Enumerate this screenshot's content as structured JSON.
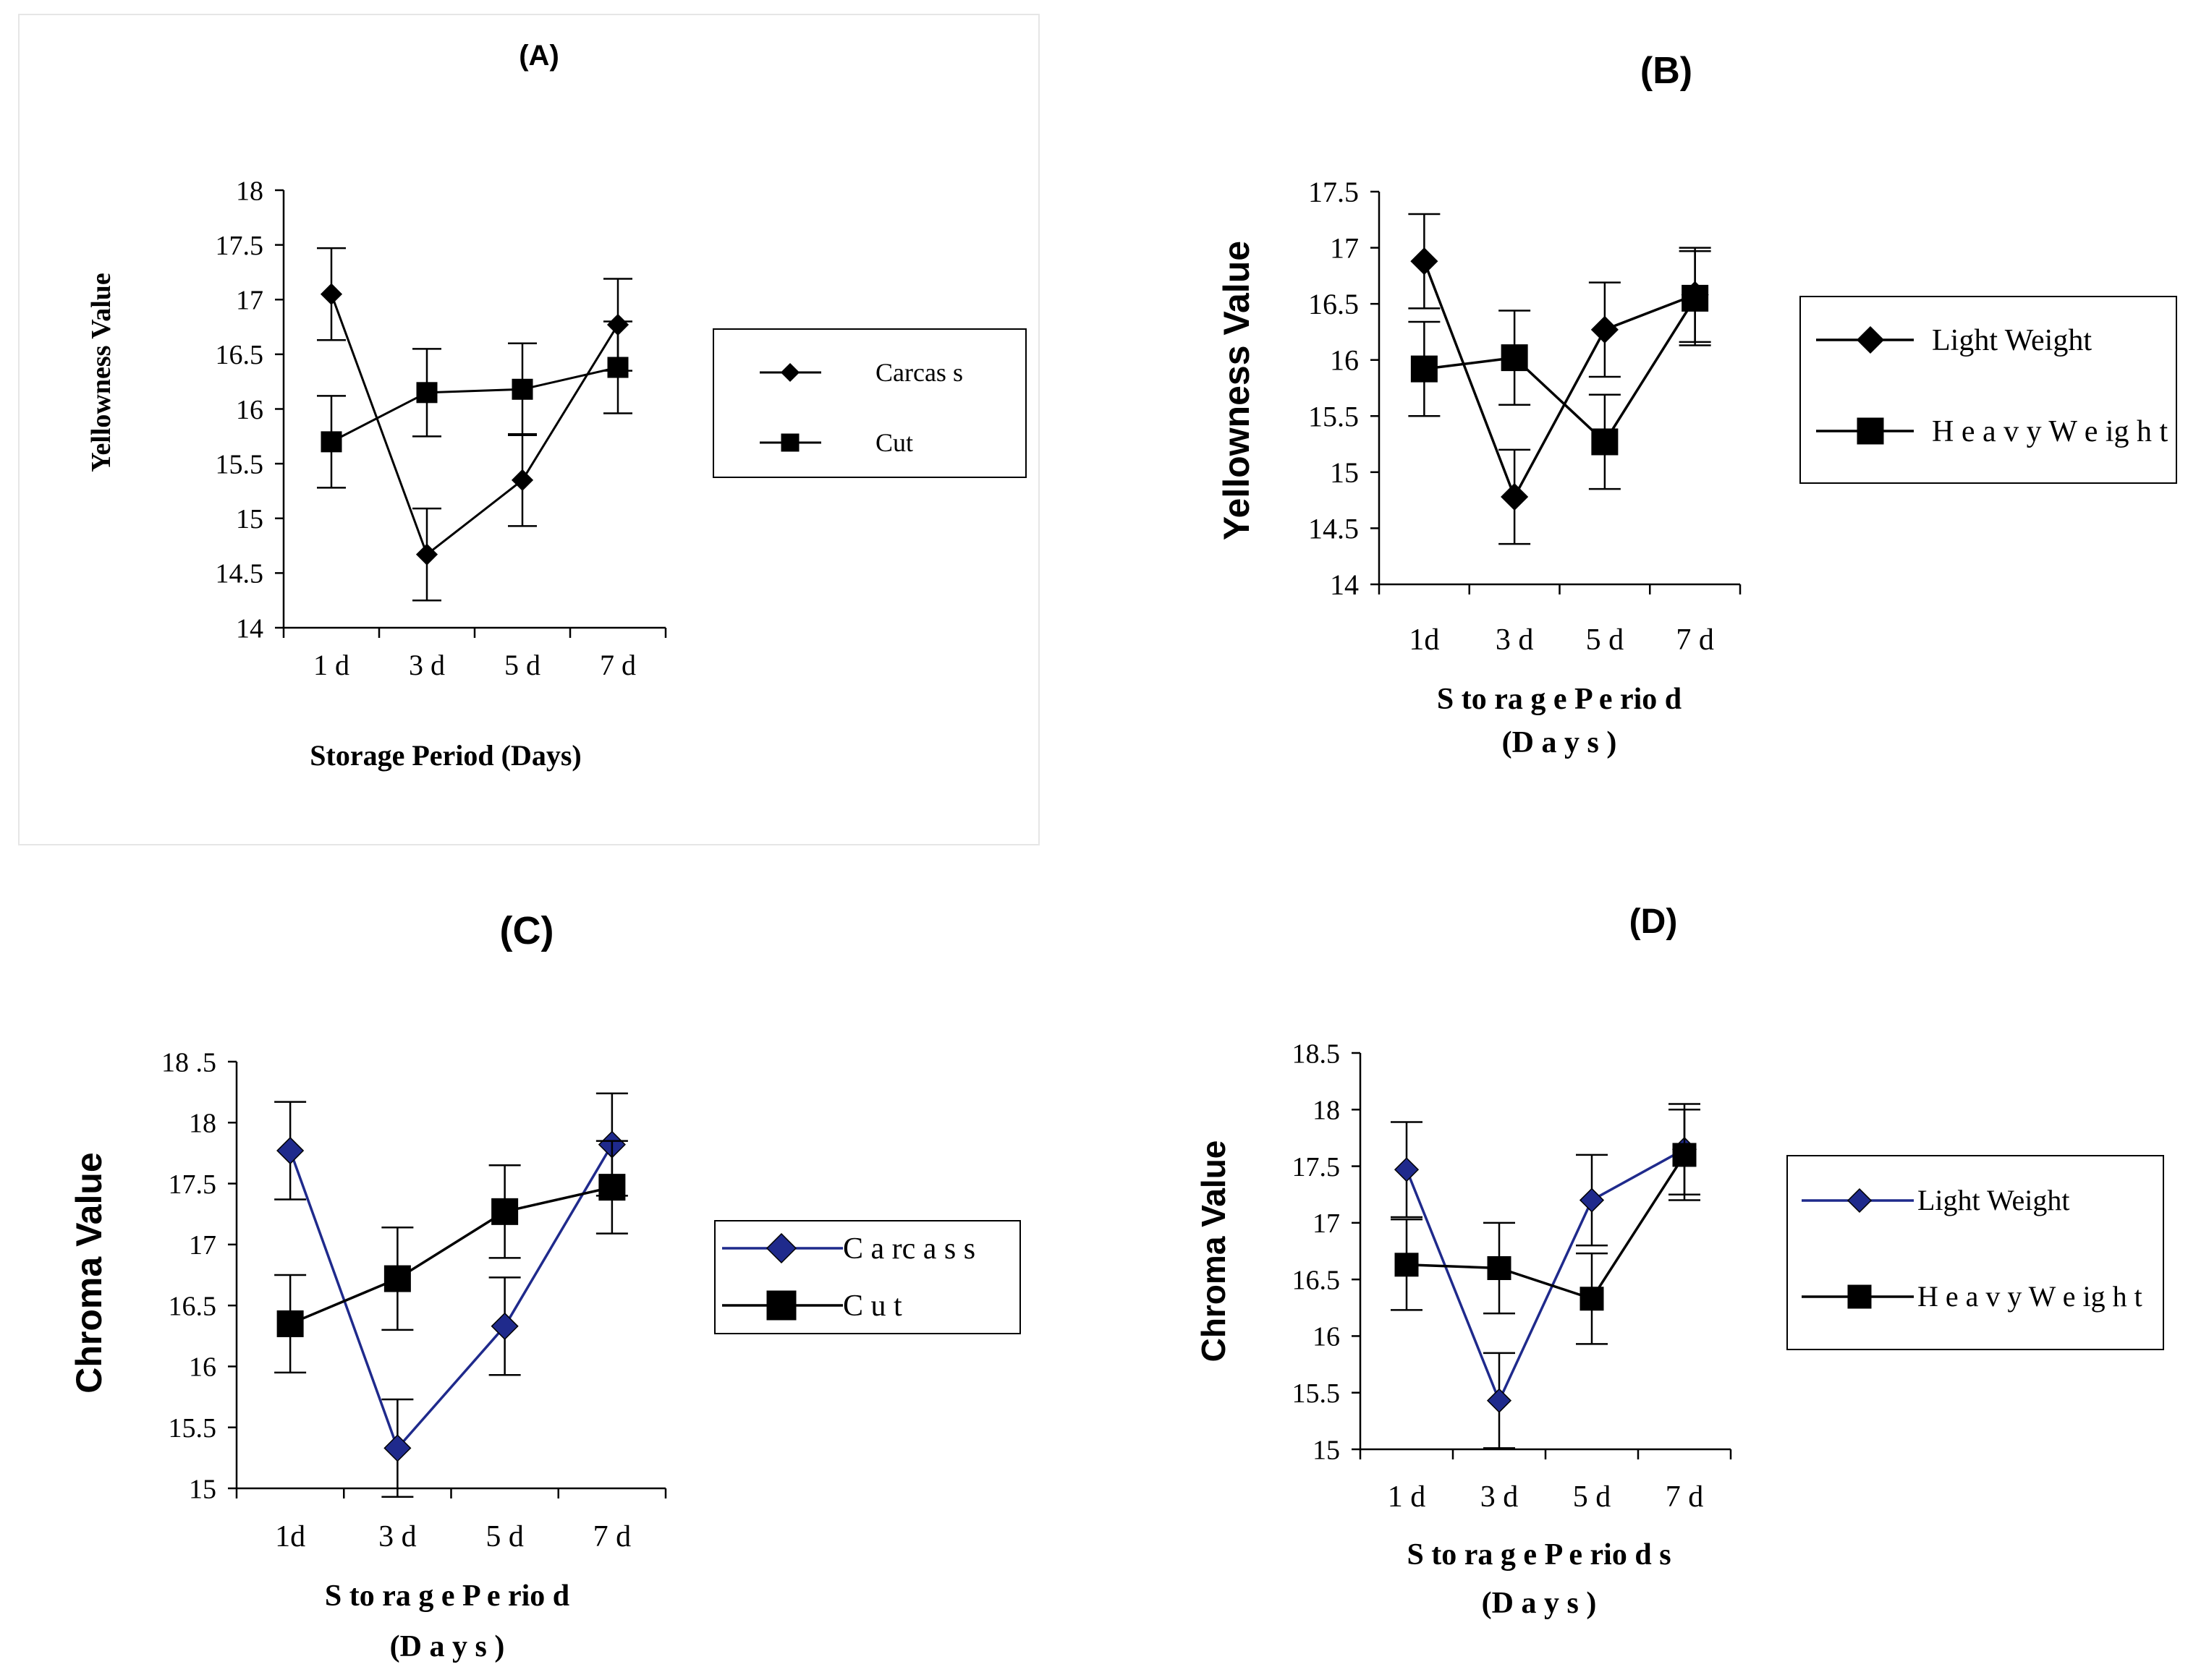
{
  "chart_data": [
    {
      "id": "A",
      "type": "line",
      "title": "(A)",
      "xlabel": "Storage Period (Days)",
      "ylabel": "Yellowness Value",
      "categories": [
        "1 d",
        "3 d",
        "5 d",
        "7 d"
      ],
      "ylim": [
        14,
        18
      ],
      "yticks": [
        "14",
        "14.5",
        "15",
        "15.5",
        "16",
        "16.5",
        "17",
        "17.5",
        "18"
      ],
      "legend_position": "right",
      "series": [
        {
          "name": "Carcass",
          "legend_label": "Carcas s",
          "marker": "diamond",
          "color": "#000000",
          "values": [
            17.05,
            14.67,
            15.35,
            16.77
          ],
          "errors": [
            0.42,
            0.42,
            0.42,
            0.42
          ]
        },
        {
          "name": "Cut",
          "legend_label": "Cut",
          "marker": "square",
          "color": "#000000",
          "values": [
            15.7,
            16.15,
            16.18,
            16.38
          ],
          "errors": [
            0.42,
            0.4,
            0.42,
            0.42
          ]
        }
      ]
    },
    {
      "id": "B",
      "type": "line",
      "title": "(B)",
      "xlabel": "S to ra g e  P e rio d",
      "xlabel2": "(D a y s )",
      "ylabel": "Yellowness Value",
      "categories": [
        "1d",
        "3 d",
        "5 d",
        "7 d"
      ],
      "ylim": [
        14,
        17.5
      ],
      "yticks": [
        "14",
        "14.5",
        "15",
        "15.5",
        "16",
        "16.5",
        "17",
        "17.5"
      ],
      "legend_position": "right",
      "series": [
        {
          "name": "Light Weight",
          "legend_label": "Light Weight",
          "marker": "diamond",
          "color": "#000000",
          "values": [
            16.88,
            14.78,
            16.27,
            16.58
          ],
          "errors": [
            0.42,
            0.42,
            0.42,
            0.42
          ]
        },
        {
          "name": "Heavy Weight",
          "legend_label": "H e a v y  W e ig h t",
          "marker": "square",
          "color": "#000000",
          "values": [
            15.92,
            16.02,
            15.27,
            16.55
          ],
          "errors": [
            0.42,
            0.42,
            0.42,
            0.42
          ]
        }
      ]
    },
    {
      "id": "C",
      "type": "line",
      "title": "(C)",
      "xlabel": "S to ra g e  P e rio d",
      "xlabel2": "(D a y s )",
      "ylabel": "Chroma Value",
      "categories": [
        "1d",
        "3 d",
        "5 d",
        "7 d"
      ],
      "ylim": [
        15,
        18.5
      ],
      "yticks": [
        "15",
        "15.5",
        "16",
        "16.5",
        "17",
        "17.5",
        "18",
        "18 .5"
      ],
      "legend_position": "right",
      "series": [
        {
          "name": "Carcass",
          "legend_label": "C a rc a s s",
          "marker": "diamond",
          "color": "#1f2a8c",
          "values": [
            17.77,
            15.33,
            16.33,
            17.82
          ],
          "errors": [
            0.4,
            0.4,
            0.4,
            0.42
          ]
        },
        {
          "name": "Cut",
          "legend_label": "C u t",
          "marker": "square",
          "color": "#000000",
          "values": [
            16.35,
            16.72,
            17.27,
            17.47
          ],
          "errors": [
            0.4,
            0.42,
            0.38,
            0.38
          ]
        }
      ]
    },
    {
      "id": "D",
      "type": "line",
      "title": "(D)",
      "xlabel": "S to ra g e  P e rio d s",
      "xlabel2": "(D a y s )",
      "ylabel": "Chroma Value",
      "categories": [
        "1 d",
        "3 d",
        "5 d",
        "7 d"
      ],
      "ylim": [
        15,
        18.5
      ],
      "yticks": [
        "15",
        "15.5",
        "16",
        "16.5",
        "17",
        "17.5",
        "18",
        "18.5"
      ],
      "legend_position": "right",
      "series": [
        {
          "name": "Light Weight",
          "legend_label": "Light Weight",
          "marker": "diamond",
          "color": "#1f2a8c",
          "values": [
            17.47,
            15.43,
            17.2,
            17.65
          ],
          "errors": [
            0.42,
            0.42,
            0.4,
            0.4
          ]
        },
        {
          "name": "Heavy Weight",
          "legend_label": "H e a v y  W e ig h t",
          "marker": "square",
          "color": "#000000",
          "values": [
            16.63,
            16.6,
            16.33,
            17.6
          ],
          "errors": [
            0.4,
            0.4,
            0.4,
            0.4
          ]
        }
      ]
    }
  ]
}
